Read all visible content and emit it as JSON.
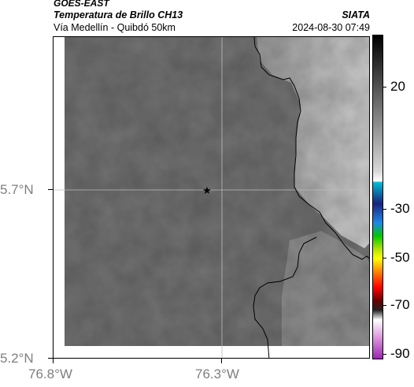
{
  "header": {
    "satellite": "GOES-EAST",
    "product": "Temperatura de Brillo CH13",
    "region": "Vía Medellín - Quibdó 50km",
    "agency": "SIATA",
    "datetime": "2024-08-30 07:49"
  },
  "map": {
    "lat_ticks": [
      "5.7°N",
      "5.2°N"
    ],
    "lon_ticks": [
      "76.8°W",
      "76.3°W"
    ],
    "marker": "star-icon",
    "colors": {
      "background_gray": "#6f6f6f",
      "highlands_gray": "#b0b0b0",
      "boundary": "#000000"
    }
  },
  "colorbar": {
    "tick_labels": [
      "20",
      "-30",
      "-50",
      "-70",
      "-90"
    ],
    "colors": [
      "#000000",
      "#ffffff",
      "#00bcd4",
      "#1a237e",
      "#00c800",
      "#ffff00",
      "#ff0000",
      "#6b0000",
      "#ffffff",
      "#9c27b0"
    ]
  }
}
